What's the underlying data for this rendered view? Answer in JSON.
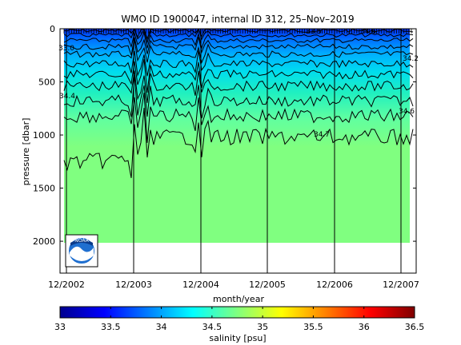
{
  "chart_data": [
    {
      "type": "heatmap",
      "title": "WMO ID 1900047, internal ID 312, 25–Nov–2019",
      "xlabel": "month/year",
      "ylabel": "pressure [dbar]",
      "x_ticks": [
        "12/2002",
        "12/2003",
        "12/2004",
        "12/2005",
        "12/2006",
        "12/2007"
      ],
      "x_range": [
        "10/2002",
        "02/2008"
      ],
      "y_ticks": [
        0,
        500,
        1000,
        1500,
        2000
      ],
      "ylim": [
        2300,
        0
      ],
      "y_reversed": true,
      "max_pressure": 2000,
      "contour_levels": [
        33.0,
        33.5,
        33.8,
        34.0,
        34.1,
        34.2,
        34.3,
        34.4,
        34.5,
        34.6,
        34.7
      ],
      "contour_labels": [
        "33.0",
        "34.2",
        "34.4",
        "34.6",
        "34.7",
        "33.5",
        "34.6"
      ],
      "deep_salinity": 34.7,
      "surface_salinity": 33.3
    },
    {
      "type": "colorbar",
      "label": "salinity [psu]",
      "range": [
        33,
        36.5
      ],
      "ticks": [
        "33",
        "33.5",
        "34",
        "34.5",
        "35",
        "35.5",
        "36",
        "36.5"
      ],
      "colormap": "jet"
    }
  ],
  "logo": {
    "icon": "noaa-logo",
    "text": "NOAA"
  },
  "colors": {
    "deep_water": "#80ff80",
    "surface": "#0020ff",
    "background": "#ffffff"
  }
}
